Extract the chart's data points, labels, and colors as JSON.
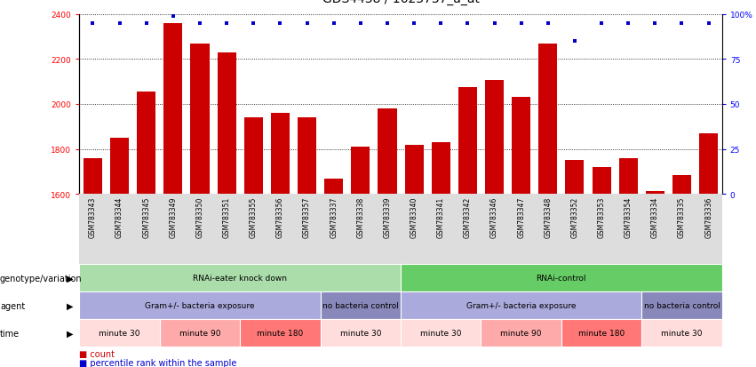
{
  "samples": [
    "GSM783343",
    "GSM783344",
    "GSM783345",
    "GSM783349",
    "GSM783350",
    "GSM783351",
    "GSM783355",
    "GSM783356",
    "GSM783357",
    "GSM783337",
    "GSM783338",
    "GSM783339",
    "GSM783340",
    "GSM783341",
    "GSM783342",
    "GSM783346",
    "GSM783347",
    "GSM783348",
    "GSM783352",
    "GSM783353",
    "GSM783354",
    "GSM783334",
    "GSM783335",
    "GSM783336"
  ],
  "counts": [
    1760,
    1850,
    2055,
    2360,
    2270,
    2230,
    1940,
    1960,
    1940,
    1670,
    1810,
    1980,
    1820,
    1830,
    2075,
    2105,
    2030,
    2270,
    1750,
    1720,
    1760,
    1615,
    1685,
    1870
  ],
  "percentile_ranks": [
    95,
    95,
    95,
    99,
    95,
    95,
    95,
    95,
    95,
    95,
    95,
    95,
    95,
    95,
    95,
    95,
    95,
    95,
    85,
    95,
    95,
    95,
    95,
    95
  ],
  "ylim": [
    1600,
    2400
  ],
  "yticks": [
    1600,
    1800,
    2000,
    2200,
    2400
  ],
  "bar_color": "#cc0000",
  "dot_color": "#0000cc",
  "right_yticks": [
    0,
    25,
    50,
    75,
    100
  ],
  "right_ylabels": [
    "0",
    "25",
    "50",
    "75",
    "100%"
  ],
  "genotype_groups": [
    {
      "label": "RNAi-eater knock down",
      "start": 0,
      "end": 12,
      "color": "#aaddaa"
    },
    {
      "label": "RNAi-control",
      "start": 12,
      "end": 24,
      "color": "#66cc66"
    }
  ],
  "agent_groups": [
    {
      "label": "Gram+/- bacteria exposure",
      "start": 0,
      "end": 9,
      "color": "#aaaadd"
    },
    {
      "label": "no bacteria control",
      "start": 9,
      "end": 12,
      "color": "#8888bb"
    },
    {
      "label": "Gram+/- bacteria exposure",
      "start": 12,
      "end": 21,
      "color": "#aaaadd"
    },
    {
      "label": "no bacteria control",
      "start": 21,
      "end": 24,
      "color": "#8888bb"
    }
  ],
  "time_groups": [
    {
      "label": "minute 30",
      "start": 0,
      "end": 3,
      "color": "#ffdddd"
    },
    {
      "label": "minute 90",
      "start": 3,
      "end": 6,
      "color": "#ffaaaa"
    },
    {
      "label": "minute 180",
      "start": 6,
      "end": 9,
      "color": "#ff7777"
    },
    {
      "label": "minute 30",
      "start": 9,
      "end": 12,
      "color": "#ffdddd"
    },
    {
      "label": "minute 30",
      "start": 12,
      "end": 15,
      "color": "#ffdddd"
    },
    {
      "label": "minute 90",
      "start": 15,
      "end": 18,
      "color": "#ffaaaa"
    },
    {
      "label": "minute 180",
      "start": 18,
      "end": 21,
      "color": "#ff7777"
    },
    {
      "label": "minute 30",
      "start": 21,
      "end": 24,
      "color": "#ffdddd"
    }
  ],
  "row_labels": [
    "genotype/variation",
    "agent",
    "time"
  ],
  "legend_items": [
    {
      "color": "#cc0000",
      "label": "count"
    },
    {
      "color": "#0000cc",
      "label": "percentile rank within the sample"
    }
  ],
  "title_fontsize": 10,
  "tick_fontsize": 5.5,
  "annotation_fontsize": 7,
  "row_label_fontsize": 7
}
